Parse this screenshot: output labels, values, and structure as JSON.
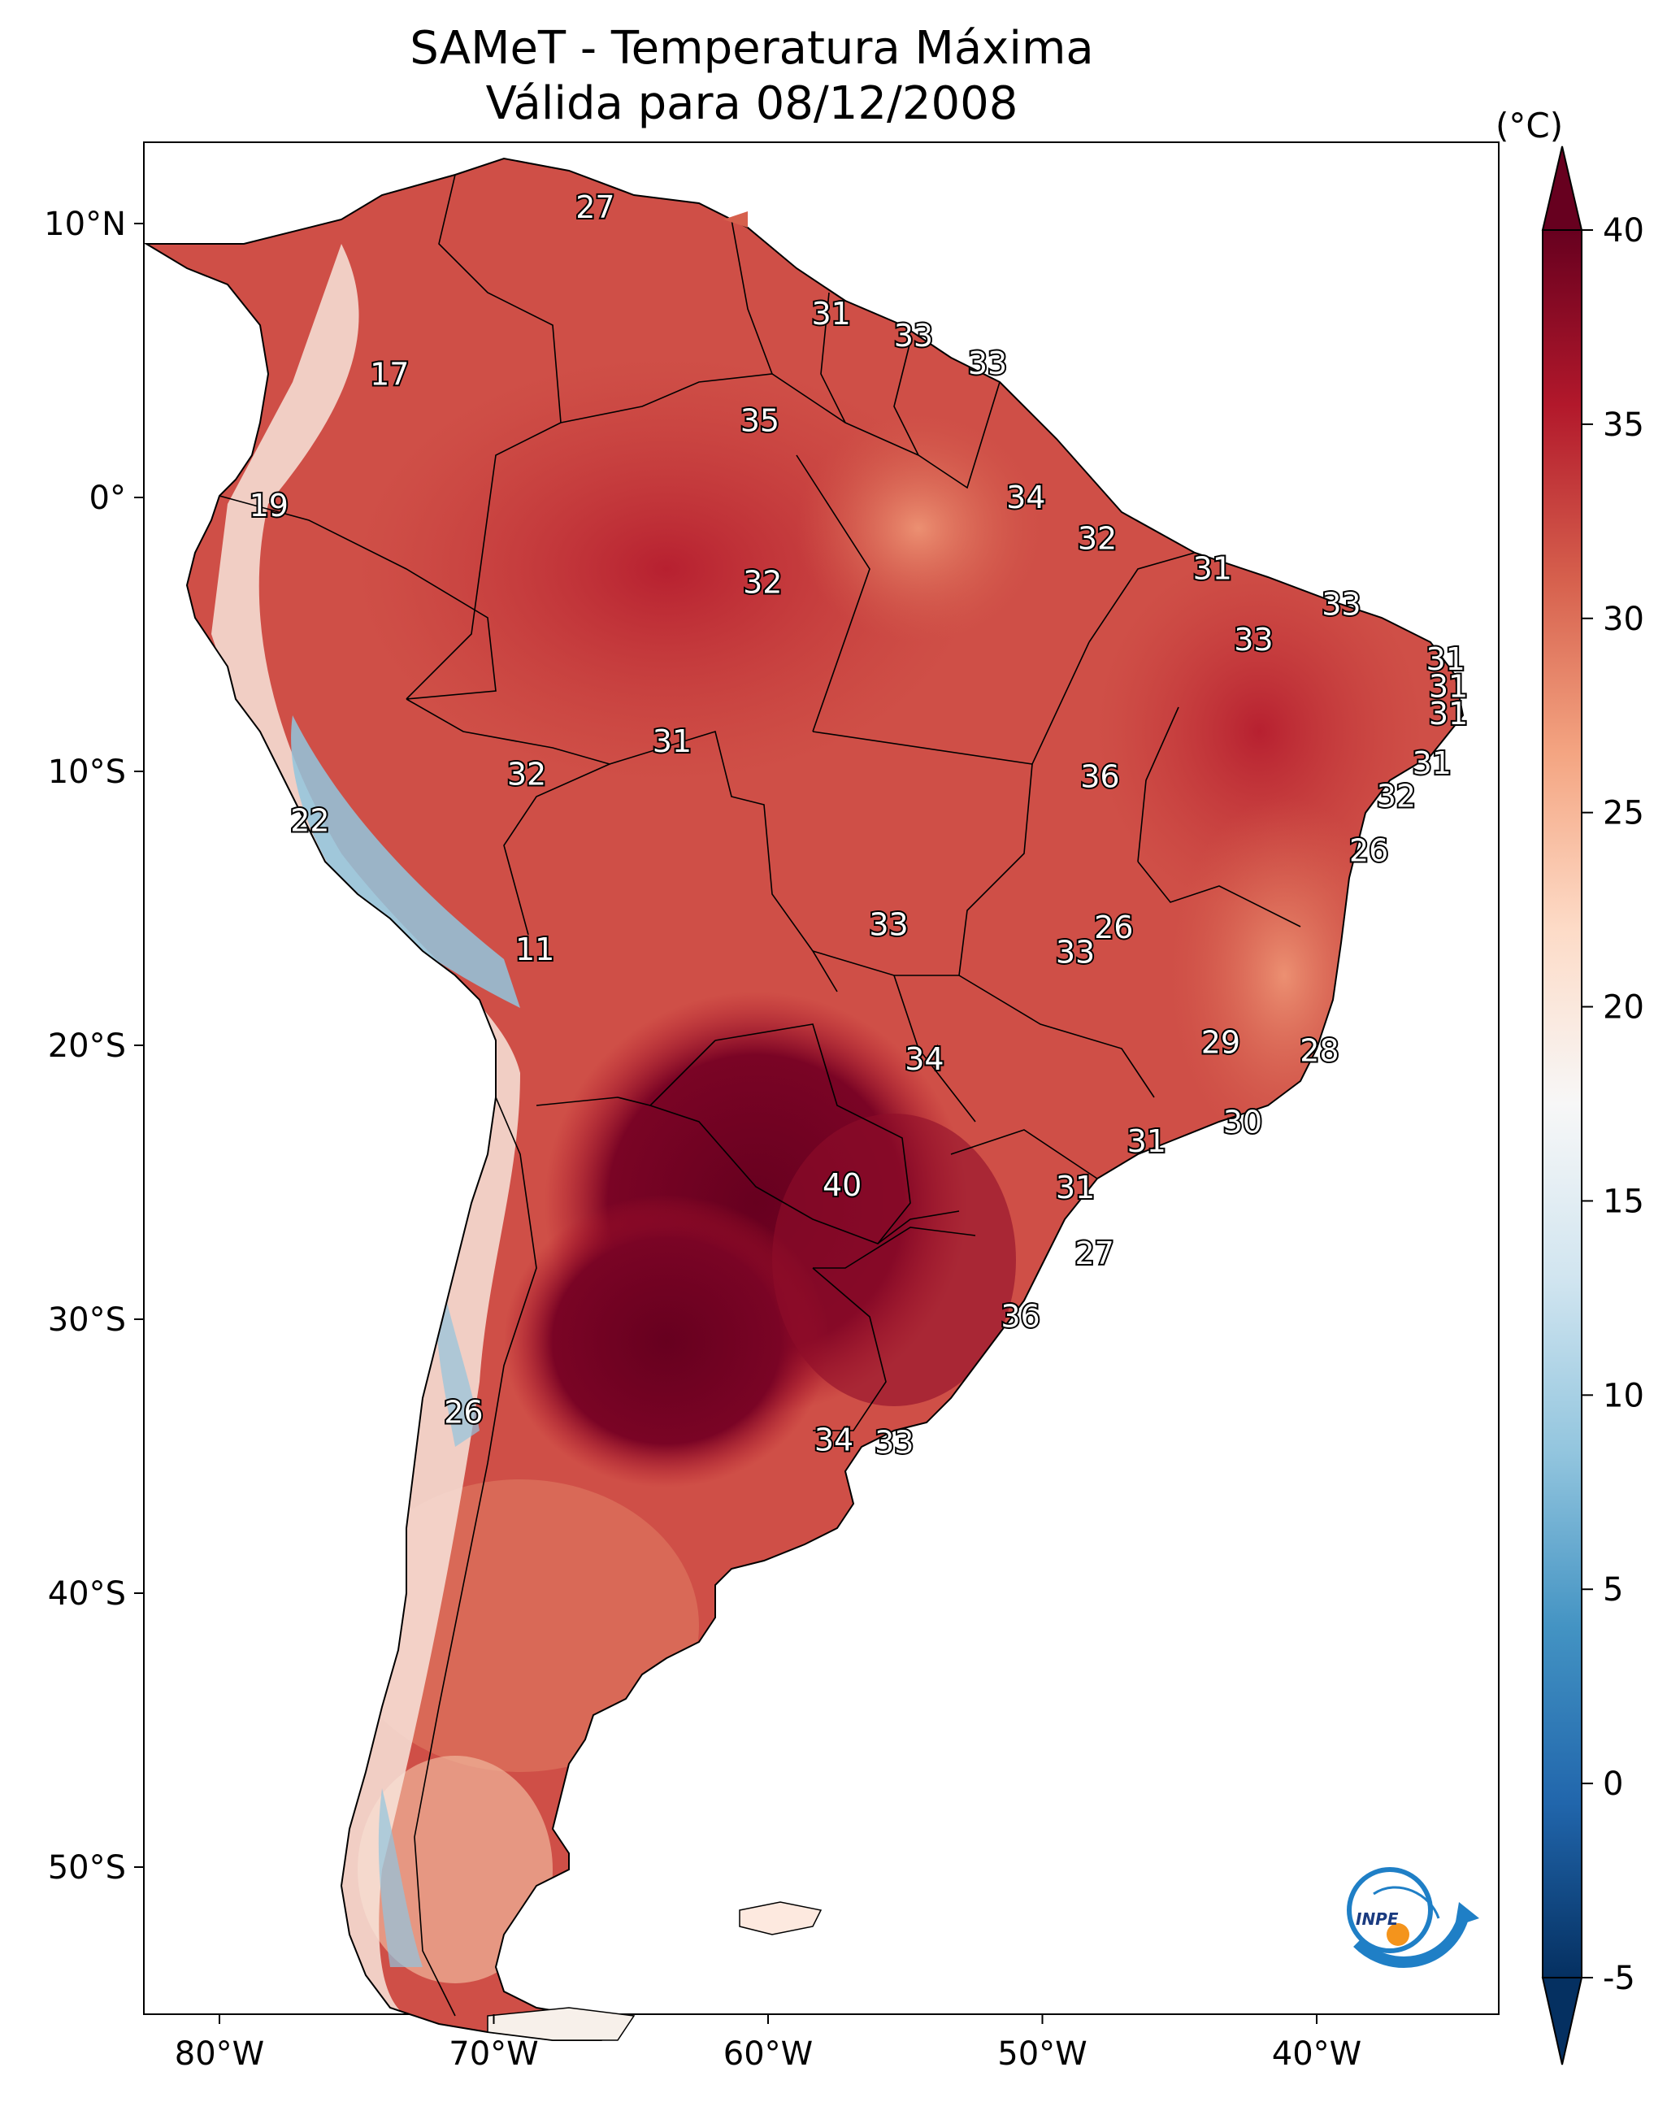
{
  "title": {
    "line1": "SAMeT - Temperatura Máxima",
    "line2": "Válida para 08/12/2008"
  },
  "colorbar": {
    "unit": "(°C)",
    "ticks": [
      "40",
      "35",
      "30",
      "25",
      "20",
      "15",
      "10",
      "5",
      "0",
      "-5"
    ],
    "colors": [
      "#67001f",
      "#b2182b",
      "#d6604d",
      "#f4a582",
      "#fddbc7",
      "#f7f7f7",
      "#d1e5f0",
      "#92c5de",
      "#4393c3",
      "#2166ac",
      "#053061"
    ]
  },
  "axes": {
    "lon_ticks": [
      "80°W",
      "70°W",
      "60°W",
      "50°W",
      "40°W"
    ],
    "lat_ticks": [
      "10°N",
      "0°",
      "10°S",
      "20°S",
      "30°S",
      "40°S",
      "50°S"
    ]
  },
  "logo": {
    "text": "INPE"
  },
  "map_labels": [
    {
      "value": "27",
      "lon": -66.3,
      "lat": 10.6
    },
    {
      "value": "17",
      "lon": -73.8,
      "lat": 4.5
    },
    {
      "value": "19",
      "lon": -78.2,
      "lat": -0.3
    },
    {
      "value": "31",
      "lon": -57.7,
      "lat": 6.7
    },
    {
      "value": "33",
      "lon": -54.7,
      "lat": 5.9
    },
    {
      "value": "33",
      "lon": -52.0,
      "lat": 4.9
    },
    {
      "value": "35",
      "lon": -60.3,
      "lat": 2.8
    },
    {
      "value": "34",
      "lon": -50.6,
      "lat": 0.0
    },
    {
      "value": "32",
      "lon": -48.0,
      "lat": -1.5
    },
    {
      "value": "32",
      "lon": -60.2,
      "lat": -3.1
    },
    {
      "value": "31",
      "lon": -43.8,
      "lat": -2.6
    },
    {
      "value": "33",
      "lon": -39.1,
      "lat": -3.9
    },
    {
      "value": "33",
      "lon": -42.3,
      "lat": -5.2
    },
    {
      "value": "31",
      "lon": -35.3,
      "lat": -5.9
    },
    {
      "value": "31",
      "lon": -35.2,
      "lat": -6.9
    },
    {
      "value": "31",
      "lon": -35.2,
      "lat": -7.9
    },
    {
      "value": "31",
      "lon": -35.8,
      "lat": -9.7
    },
    {
      "value": "32",
      "lon": -37.1,
      "lat": -10.9
    },
    {
      "value": "31",
      "lon": -63.5,
      "lat": -8.9
    },
    {
      "value": "32",
      "lon": -68.8,
      "lat": -10.1
    },
    {
      "value": "36",
      "lon": -47.9,
      "lat": -10.2
    },
    {
      "value": "26",
      "lon": -38.1,
      "lat": -12.9
    },
    {
      "value": "22",
      "lon": -76.7,
      "lat": -11.8
    },
    {
      "value": "11",
      "lon": -68.5,
      "lat": -16.5
    },
    {
      "value": "33",
      "lon": -55.6,
      "lat": -15.6
    },
    {
      "value": "26",
      "lon": -47.4,
      "lat": -15.7
    },
    {
      "value": "33",
      "lon": -48.8,
      "lat": -16.6
    },
    {
      "value": "34",
      "lon": -54.3,
      "lat": -20.5
    },
    {
      "value": "29",
      "lon": -43.5,
      "lat": -19.9
    },
    {
      "value": "28",
      "lon": -39.9,
      "lat": -20.2
    },
    {
      "value": "30",
      "lon": -42.7,
      "lat": -22.8
    },
    {
      "value": "31",
      "lon": -46.2,
      "lat": -23.5
    },
    {
      "value": "40",
      "lon": -57.3,
      "lat": -25.1
    },
    {
      "value": "31",
      "lon": -48.8,
      "lat": -25.2
    },
    {
      "value": "27",
      "lon": -48.1,
      "lat": -27.6
    },
    {
      "value": "36",
      "lon": -50.8,
      "lat": -29.9
    },
    {
      "value": "26",
      "lon": -71.1,
      "lat": -33.4
    },
    {
      "value": "34",
      "lon": -57.6,
      "lat": -34.4
    },
    {
      "value": "33",
      "lon": -55.4,
      "lat": -34.5
    }
  ]
}
